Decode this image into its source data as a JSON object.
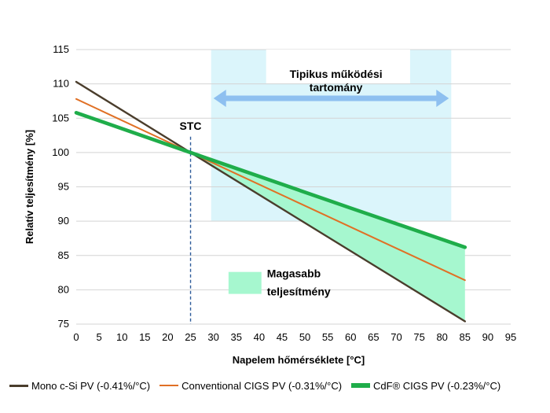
{
  "chart_data": {
    "type": "line",
    "xlabel": "Napelem hőmérséklete [°C]",
    "ylabel": "Relatív teljesítmény [%]",
    "xlim": [
      0,
      95
    ],
    "ylim": [
      75,
      115
    ],
    "xticks": [
      0,
      5,
      10,
      15,
      20,
      25,
      30,
      35,
      40,
      45,
      50,
      55,
      60,
      65,
      70,
      75,
      80,
      85,
      90,
      95
    ],
    "yticks": [
      75,
      80,
      85,
      90,
      95,
      100,
      105,
      110,
      115
    ],
    "grid": "horizontal",
    "legend_position": "bottom",
    "series": [
      {
        "name": "Mono c-Si PV (-0.41%/°C)",
        "color": "#4a3d2c",
        "x": [
          0,
          25,
          85
        ],
        "y": [
          110.3,
          100,
          75.4
        ]
      },
      {
        "name": "Conventional CIGS PV (-0.31%/°C)",
        "color": "#e07025",
        "x": [
          0,
          25,
          85
        ],
        "y": [
          107.8,
          100,
          81.4
        ]
      },
      {
        "name": "CdF® CIGS PV (-0.23%/°C)",
        "color": "#1fad4a",
        "x": [
          0,
          25,
          60,
          85
        ],
        "y": [
          105.8,
          100,
          91.9,
          86.2
        ]
      }
    ],
    "annotations": {
      "stc_label": "STC",
      "stc_x": 25,
      "operating_range": {
        "x": [
          29.5,
          82
        ],
        "label_line1": "Tipikus működési",
        "label_line2": "tartomány"
      },
      "higher_output_label_line1": "Magasabb",
      "higher_output_label_line2": "teljesítmény"
    },
    "colors": {
      "range_band": "#dbf5fb",
      "range_arrow": "#8ec0f0",
      "higher_fill": "#a6f7cf",
      "stc_line": "#2e5c9a",
      "grid": "#d4d4d4"
    }
  }
}
